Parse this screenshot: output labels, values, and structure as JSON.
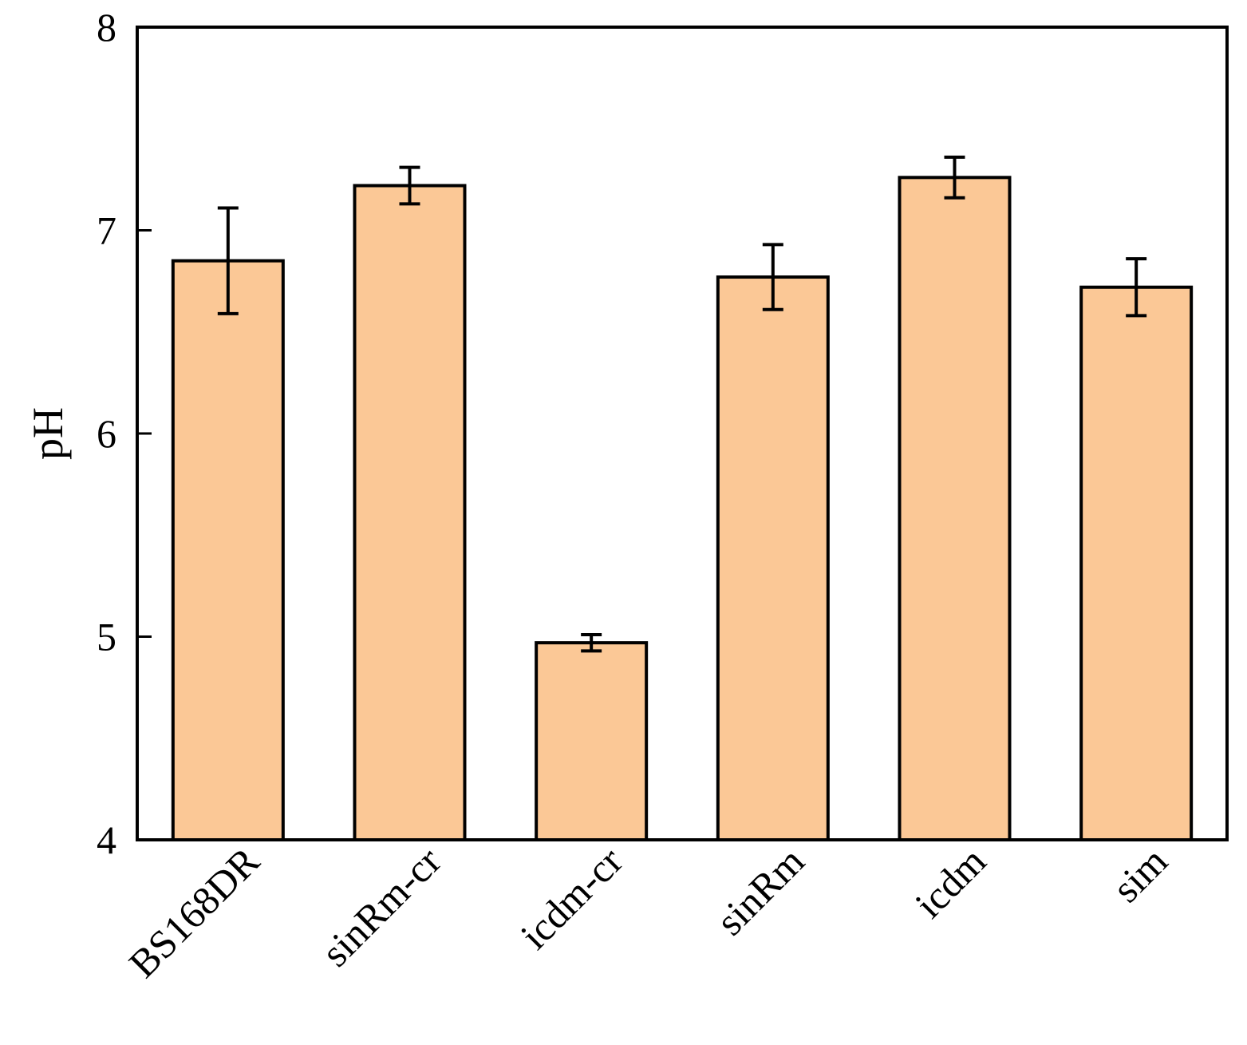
{
  "chart_data": {
    "type": "bar",
    "title": "",
    "xlabel": "",
    "ylabel": "pH",
    "ylim": [
      4,
      8
    ],
    "yticks": [
      4,
      5,
      6,
      7,
      8
    ],
    "categories": [
      "BS168DR",
      "sinRm-cr",
      "icdm-cr",
      "sinRm",
      "icdm",
      "sim"
    ],
    "series": [
      {
        "values": [
          6.85,
          7.22,
          4.97,
          6.77,
          7.26,
          6.72
        ],
        "error": [
          0.26,
          0.09,
          0.04,
          0.16,
          0.1,
          0.14
        ]
      }
    ],
    "grid": false,
    "legend": "none",
    "colors": {
      "bar_fill": "#FBC896",
      "bar_stroke": "#000000",
      "axis": "#000000",
      "error_bar": "#000000"
    }
  }
}
